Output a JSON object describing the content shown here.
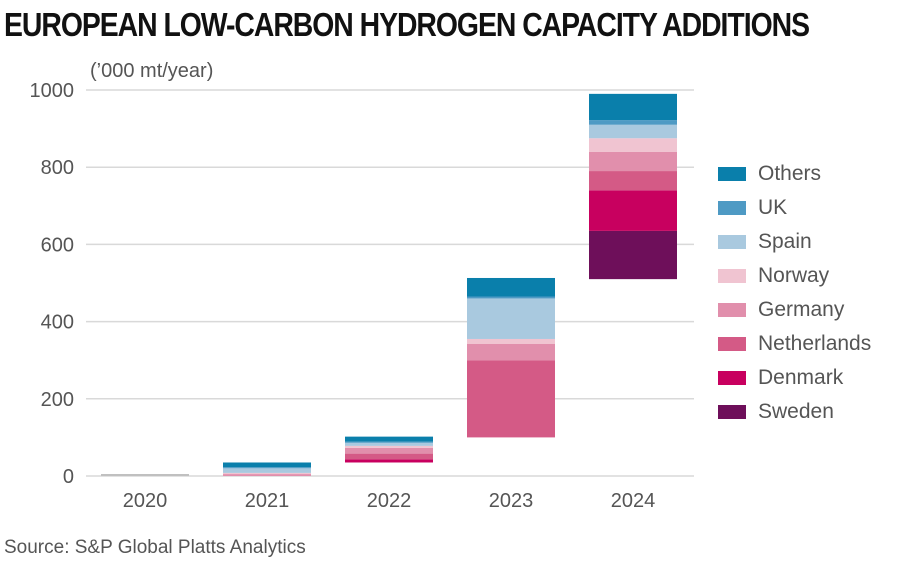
{
  "header": {
    "title": "EUROPEAN LOW-CARBON HYDROGEN CAPACITY ADDITIONS",
    "unit_label": "(’000 mt/year)",
    "source": "Source: S&P Global Platts Analytics"
  },
  "chart_data": {
    "type": "bar",
    "stacked": true,
    "title": "EUROPEAN LOW-CARBON HYDROGEN CAPACITY ADDITIONS",
    "ylabel": "(’000 mt/year)",
    "xlabel": "",
    "ylim": [
      0,
      1000
    ],
    "yticks": [
      0,
      200,
      400,
      600,
      800,
      1000
    ],
    "grid": true,
    "legend_position": "right",
    "categories": [
      "2020",
      "2021",
      "2022",
      "2023",
      "2024"
    ],
    "base": [
      0,
      0,
      35,
      100,
      510
    ],
    "series": [
      {
        "name": "Sweden",
        "color": "#6e0f5a",
        "values": [
          0,
          0,
          0,
          0,
          125
        ]
      },
      {
        "name": "Denmark",
        "color": "#c8005f",
        "values": [
          0,
          0,
          8,
          0,
          105
        ]
      },
      {
        "name": "Netherlands",
        "color": "#d45a86",
        "values": [
          0,
          0,
          15,
          200,
          50
        ]
      },
      {
        "name": "Germany",
        "color": "#e18fac",
        "values": [
          0,
          5,
          15,
          42,
          50
        ]
      },
      {
        "name": "Norway",
        "color": "#f0c4d1",
        "values": [
          0,
          3,
          5,
          13,
          35
        ]
      },
      {
        "name": "Spain",
        "color": "#a9c9df",
        "values": [
          0,
          12,
          8,
          105,
          35
        ]
      },
      {
        "name": "UK",
        "color": "#4e9ac4",
        "values": [
          0,
          3,
          3,
          5,
          12
        ]
      },
      {
        "name": "Others",
        "color": "#0a7fab",
        "values": [
          0,
          12,
          13,
          48,
          68
        ]
      }
    ]
  }
}
